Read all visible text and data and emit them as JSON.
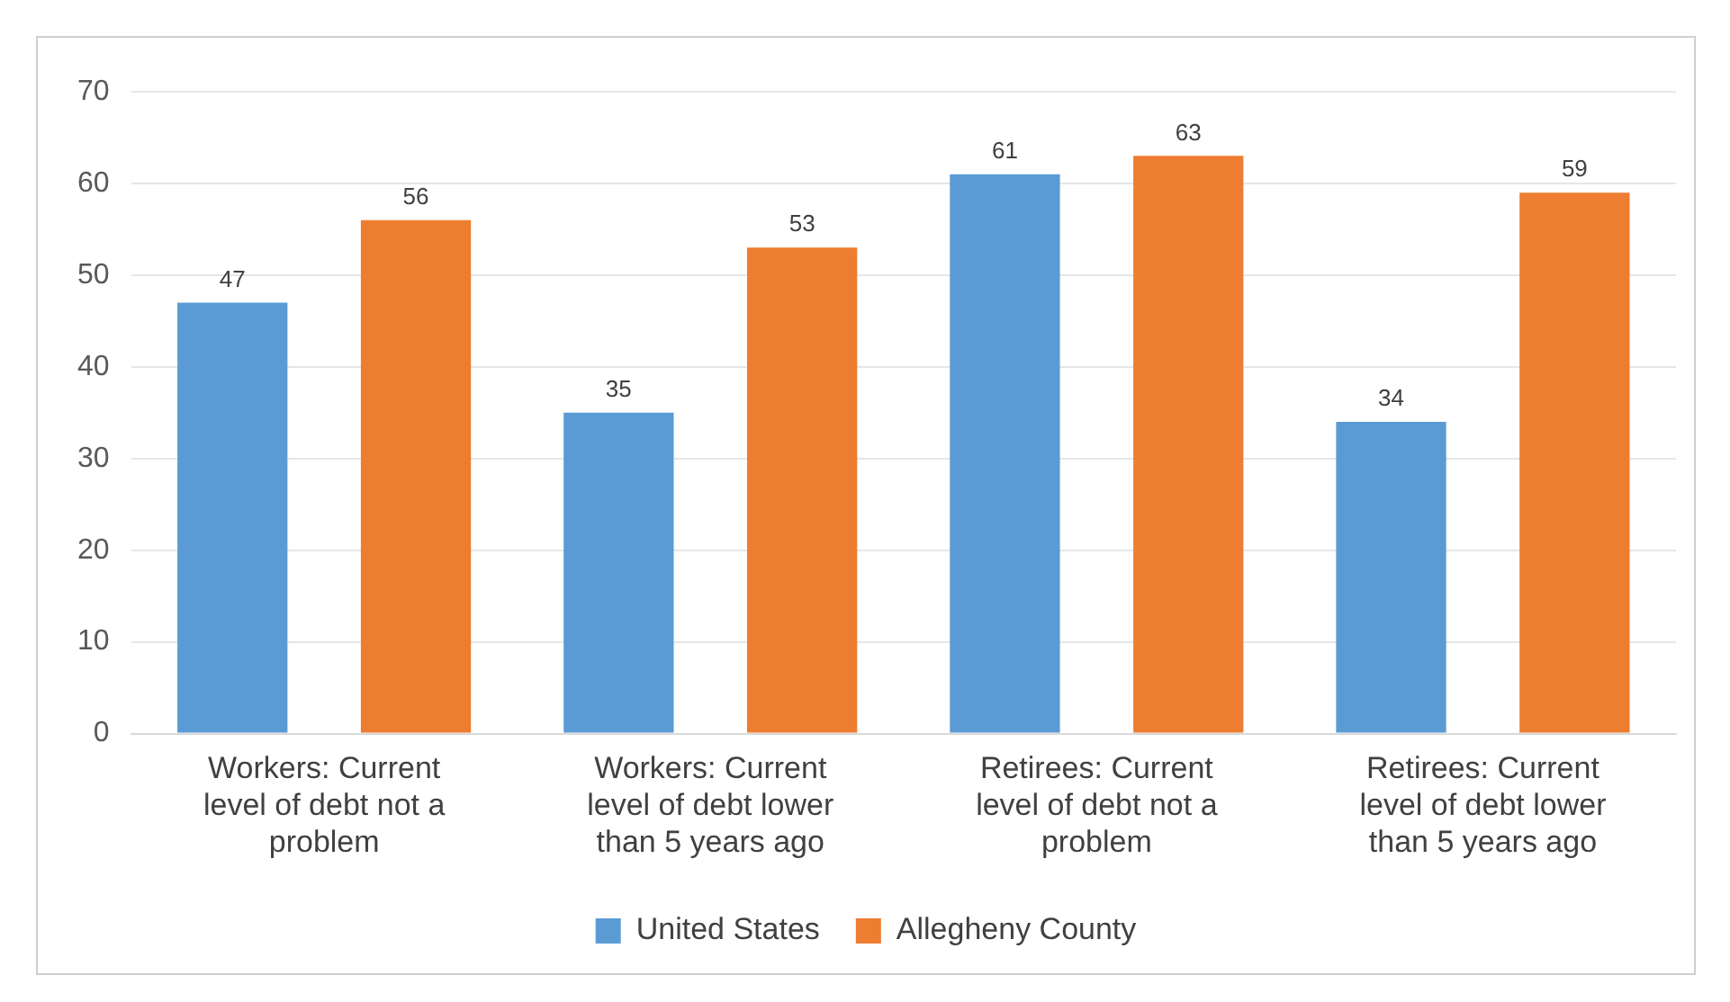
{
  "chart_data": {
    "type": "bar",
    "categories": [
      "Workers: Current level of debt not a problem",
      "Workers: Current level of debt lower than 5 years ago",
      "Retirees: Current level of debt not a problem",
      "Retirees: Current level of debt lower than 5 years ago"
    ],
    "series": [
      {
        "name": "United States",
        "color": "#5b9bd5",
        "values": [
          47,
          35,
          61,
          34
        ]
      },
      {
        "name": "Allegheny County",
        "color": "#ed7d31",
        "values": [
          56,
          53,
          63,
          59
        ]
      }
    ],
    "ylim": [
      0,
      70
    ],
    "yticks": [
      0,
      10,
      20,
      30,
      40,
      50,
      60,
      70
    ],
    "grid": "y",
    "legend": "bottom",
    "data_labels": true
  }
}
